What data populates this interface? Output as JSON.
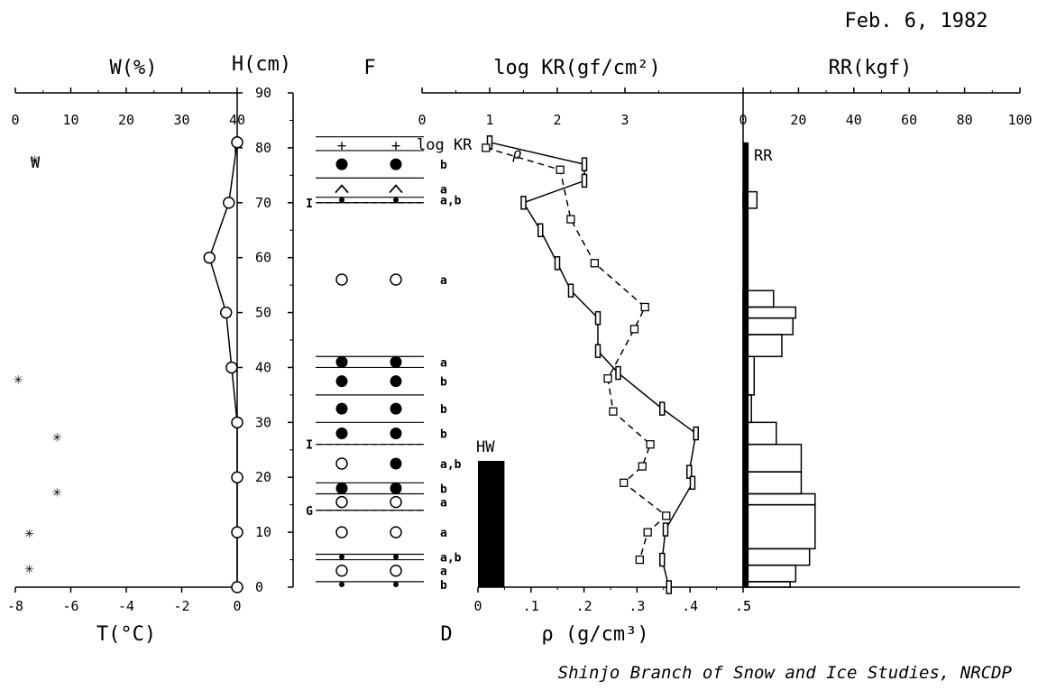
{
  "date": "Feb. 6, 1982",
  "credit": "Shinjo Branch of Snow and Ice Studies, NRCDP",
  "headers": {
    "w": "W(%)",
    "h": "H(cm)",
    "f": "F",
    "kr": "log KR(gf/cm²)",
    "rr": "RR(kgf)",
    "t": "T(°C)",
    "d": "D",
    "rho": "ρ (g/cm³)"
  },
  "annotations": {
    "w": "W",
    "t": "T",
    "logkr": "log KR",
    "rho": "ρ",
    "rr": "RR",
    "hw": "HW"
  },
  "chart_data": [
    {
      "type": "scatter",
      "name_label": "W",
      "xlabel": "W(%)",
      "ylabel": "H(cm)",
      "xlim": [
        0,
        40
      ],
      "ylim": [
        0,
        90
      ],
      "x_ticks": [
        "0",
        "10",
        "20",
        "30",
        "40"
      ],
      "points": [
        [
          3.5,
          78
        ],
        [
          0.5,
          38
        ],
        [
          7.5,
          27.5
        ],
        [
          7.5,
          17.5
        ],
        [
          2.5,
          10
        ],
        [
          2.5,
          3.5
        ]
      ]
    },
    {
      "type": "line",
      "name_label": "T",
      "xlabel": "T(°C)",
      "xlim": [
        -8,
        0
      ],
      "x_ticks": [
        "-8",
        "-6",
        "-4",
        "-2",
        "0"
      ],
      "points": [
        [
          0,
          81
        ],
        [
          -0.3,
          70
        ],
        [
          -1.0,
          60
        ],
        [
          -0.4,
          50
        ],
        [
          -0.2,
          40
        ],
        [
          0,
          30
        ],
        [
          0,
          20
        ],
        [
          0,
          10
        ],
        [
          0,
          0
        ]
      ]
    },
    {
      "type": "table",
      "name": "F",
      "layer_lines": [
        82,
        79.5,
        74.5,
        71,
        70,
        42,
        40,
        35,
        30,
        26,
        19,
        17,
        14,
        6,
        5,
        1
      ],
      "layers": [
        {
          "h": 80.5,
          "symbol": "plus",
          "code": ""
        },
        {
          "h": 77,
          "symbol": "filled",
          "code": "b"
        },
        {
          "h": 72.5,
          "symbol": "caret",
          "code": "a"
        },
        {
          "h": 70.5,
          "symbol": "small-dot",
          "code": "a,b"
        },
        {
          "h": 56,
          "symbol": "open",
          "code": "a"
        },
        {
          "h": 41,
          "symbol": "filled",
          "code": "a"
        },
        {
          "h": 37.5,
          "symbol": "filled",
          "code": "b"
        },
        {
          "h": 32.5,
          "symbol": "filled",
          "code": "b"
        },
        {
          "h": 28,
          "symbol": "filled",
          "code": "b"
        },
        {
          "h": 22.5,
          "symbol": "open-filled",
          "code": "a,b"
        },
        {
          "h": 18,
          "symbol": "filled",
          "code": "b"
        },
        {
          "h": 15.5,
          "symbol": "open",
          "code": "a"
        },
        {
          "h": 10,
          "symbol": "open",
          "code": "a"
        },
        {
          "h": 5.5,
          "symbol": "small-dot",
          "code": "a,b"
        },
        {
          "h": 3,
          "symbol": "open",
          "code": "a"
        },
        {
          "h": 0.5,
          "symbol": "small-dot",
          "code": "b"
        }
      ],
      "margin_marks": [
        {
          "h": 70,
          "label": "I"
        },
        {
          "h": 26,
          "label": "I"
        },
        {
          "h": 14,
          "label": "G"
        }
      ]
    },
    {
      "type": "line",
      "name_label": "log KR",
      "xlabel": "log KR(gf/cm²)",
      "xlim": [
        0,
        4
      ],
      "x_ticks": [
        "0",
        "1",
        "2",
        "3"
      ],
      "points": [
        [
          1.0,
          81
        ],
        [
          2.4,
          77
        ],
        [
          2.4,
          74
        ],
        [
          1.5,
          70
        ],
        [
          1.75,
          65
        ],
        [
          2.0,
          59
        ],
        [
          2.2,
          54
        ],
        [
          2.6,
          49
        ],
        [
          2.6,
          43
        ],
        [
          2.9,
          39
        ],
        [
          3.55,
          32.5
        ],
        [
          4.05,
          28
        ],
        [
          3.95,
          21
        ],
        [
          4.0,
          19
        ],
        [
          3.6,
          10.5
        ],
        [
          3.55,
          5
        ],
        [
          3.65,
          0
        ]
      ]
    },
    {
      "type": "line",
      "name_label": "ρ",
      "xlabel": "ρ (g/cm³)",
      "xlim": [
        0,
        0.5
      ],
      "x_ticks": [
        "0",
        ".1",
        ".2",
        ".3",
        ".4",
        ".5"
      ],
      "points": [
        [
          0.015,
          80
        ],
        [
          0.155,
          76
        ],
        [
          0.175,
          67
        ],
        [
          0.22,
          59
        ],
        [
          0.315,
          51
        ],
        [
          0.295,
          47
        ],
        [
          0.245,
          38
        ],
        [
          0.255,
          32
        ],
        [
          0.325,
          26
        ],
        [
          0.31,
          22
        ],
        [
          0.275,
          19
        ],
        [
          0.355,
          13
        ],
        [
          0.32,
          10
        ],
        [
          0.305,
          5
        ]
      ]
    },
    {
      "type": "bar",
      "name_label": "HW",
      "value": 23,
      "note": "solid black column at ρ axis origin, 0 to 23 cm"
    },
    {
      "type": "bar",
      "name_label": "RR",
      "xlabel": "RR(kgf)",
      "xlim": [
        0,
        100
      ],
      "x_ticks": [
        "0",
        "20",
        "40",
        "60",
        "80",
        "100"
      ],
      "bars": [
        [
          0,
          81,
          2
        ],
        [
          69,
          72,
          5
        ],
        [
          51,
          54,
          11
        ],
        [
          49,
          51,
          19
        ],
        [
          46,
          49,
          18
        ],
        [
          42,
          46,
          14
        ],
        [
          35,
          42,
          4
        ],
        [
          30,
          35,
          3
        ],
        [
          26,
          30,
          12
        ],
        [
          21,
          26,
          21
        ],
        [
          17,
          21,
          21
        ],
        [
          15,
          17,
          26
        ],
        [
          7,
          15,
          26
        ],
        [
          4,
          7,
          24
        ],
        [
          1,
          4,
          19
        ],
        [
          0,
          1,
          17
        ]
      ]
    }
  ]
}
